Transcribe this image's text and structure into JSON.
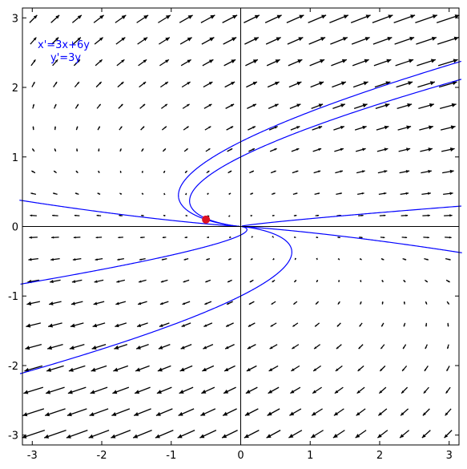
{
  "chart_data": {
    "type": "vector-field-phase-portrait",
    "title": "",
    "xlabel": "",
    "ylabel": "",
    "xlim": [
      -3.14159,
      3.14159
    ],
    "ylim": [
      -3.14159,
      3.14159
    ],
    "x_ticks": [
      -3,
      -2,
      -1,
      0,
      1,
      2,
      3
    ],
    "y_ticks": [
      -3,
      -2,
      -1,
      0,
      1,
      2,
      3
    ],
    "x_tick_labels": [
      "-3",
      "-2",
      "-1",
      "0",
      "1",
      "2",
      "3"
    ],
    "y_tick_labels": [
      "-3",
      "-2",
      "-1",
      "0",
      "1",
      "2",
      "3"
    ],
    "grid": false,
    "axes_through_origin": true,
    "system": {
      "dx": [
        3,
        6
      ],
      "dy": [
        0,
        3
      ]
    },
    "annotations": [
      "x'=3x+6y",
      "y'=3y"
    ],
    "initial_point": {
      "x": -0.5,
      "y": 0.1
    },
    "trajectories": [
      {
        "x0": -0.5,
        "y0": 0.1,
        "color": "#0000ff"
      },
      {
        "x0": 0.0,
        "y0": 1.0,
        "color": "#0000ff"
      },
      {
        "x0": 0.0,
        "y0": -1.0,
        "color": "#0000ff"
      },
      {
        "x0": -3.0,
        "y0": 0.35,
        "color": "#0000ff"
      },
      {
        "x0": 3.0,
        "y0": -0.35,
        "color": "#0000ff"
      },
      {
        "x0": 3.0,
        "y0": 0.28,
        "color": "#0000ff"
      },
      {
        "x0": -3.0,
        "y0": -0.8,
        "color": "#0000ff"
      }
    ],
    "colors": {
      "trajectory": "#0000ff",
      "point": "#dd1122",
      "arrow": "#000000",
      "axis": "#000000",
      "annotation": "#0000ff"
    }
  }
}
